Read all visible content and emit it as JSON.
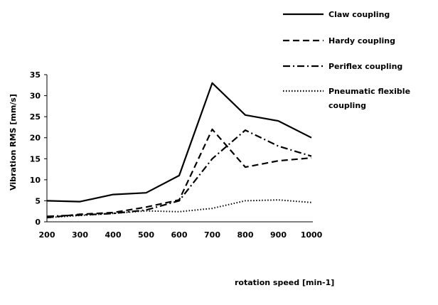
{
  "chart_data": {
    "type": "line",
    "title": "",
    "xlabel": "rotation speed [min-1]",
    "ylabel": "Vibration RMS [mm/s]",
    "categories": [
      "200",
      "300",
      "400",
      "500",
      "600",
      "700",
      "800",
      "900",
      "1000"
    ],
    "x": [
      200,
      300,
      400,
      500,
      600,
      700,
      800,
      900,
      1000
    ],
    "ylim": [
      0,
      35
    ],
    "yticks": [
      "0",
      "5",
      "10",
      "15",
      "20",
      "25",
      "30",
      "35"
    ],
    "grid": false,
    "legend_position": "top-right",
    "series": [
      {
        "name": "Claw coupling",
        "values": [
          5.0,
          4.8,
          6.5,
          6.9,
          11.0,
          33.0,
          25.4,
          24.0,
          20.0
        ],
        "dash": "solid"
      },
      {
        "name": "Hardy coupling",
        "values": [
          1.0,
          1.8,
          2.2,
          3.5,
          5.2,
          22.0,
          13.0,
          14.5,
          15.2
        ],
        "dash": "dashed"
      },
      {
        "name": "Periflex coupling",
        "values": [
          1.3,
          1.6,
          2.0,
          2.8,
          5.0,
          15.0,
          21.8,
          18.0,
          15.6
        ],
        "dash": "dashdot"
      },
      {
        "name": "Pneumatic flexible coupling",
        "name_lines": [
          "Pneumatic flexible",
          "coupling"
        ],
        "values": [
          1.0,
          1.5,
          2.0,
          2.6,
          2.4,
          3.2,
          5.0,
          5.2,
          4.6
        ],
        "dash": "dotted"
      }
    ]
  }
}
